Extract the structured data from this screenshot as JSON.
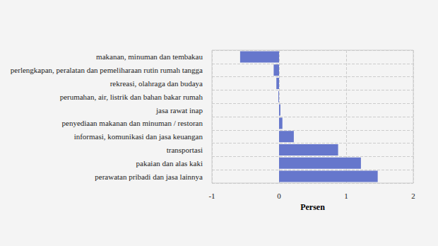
{
  "chart_data": {
    "type": "bar",
    "orientation": "horizontal",
    "categories": [
      "makanan, minuman dan tembakau",
      "perlengkapan, peralatan dan pemeliharaan rutin rumah tangga",
      "rekreasi, olahraga dan budaya",
      "perumahan, air, listrik dan bahan bakar rumah",
      "jasa rawat inap",
      "penyediaan makanan dan minuman / restoran",
      "informasi, komunikasi dan jasa keuangan",
      "transportasi",
      "pakaian dan alas kaki",
      "perawatan pribadi dan jasa lainnya"
    ],
    "values": [
      -0.58,
      -0.08,
      -0.04,
      -0.01,
      0.02,
      0.05,
      0.22,
      0.88,
      1.22,
      1.47
    ],
    "color": "#6677cc",
    "xlabel": "Persen",
    "xlim": [
      -1,
      2
    ],
    "xticks": [
      -1,
      0,
      1,
      2
    ],
    "grid": true
  }
}
